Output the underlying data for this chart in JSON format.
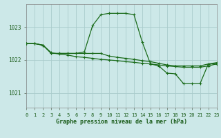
{
  "title": "Graphe pression niveau de la mer (hPa)",
  "bg_color": "#cce8e8",
  "grid_color_major": "#aacccc",
  "grid_color_minor": "#bbdddd",
  "line_color": "#1a6b1a",
  "xlim": [
    0,
    23
  ],
  "ylim": [
    1020.55,
    1023.7
  ],
  "yticks": [
    1021,
    1022,
    1023
  ],
  "xticks": [
    0,
    1,
    2,
    3,
    4,
    5,
    6,
    7,
    8,
    9,
    10,
    11,
    12,
    13,
    14,
    15,
    16,
    17,
    18,
    19,
    20,
    21,
    22,
    23
  ],
  "series1_x": [
    0,
    1,
    2,
    3,
    4,
    5,
    6,
    7,
    8,
    9,
    10,
    11,
    12,
    13,
    14,
    15,
    16,
    17,
    18,
    19,
    20,
    21,
    22,
    23
  ],
  "series1_y": [
    1022.5,
    1022.5,
    1022.45,
    1022.2,
    1022.2,
    1022.2,
    1022.2,
    1022.25,
    1023.05,
    1023.38,
    1023.42,
    1023.42,
    1023.42,
    1023.38,
    1022.55,
    1021.88,
    1021.82,
    1021.6,
    1021.58,
    1021.28,
    1021.28,
    1021.28,
    1021.88,
    1021.88
  ],
  "series2_x": [
    0,
    1,
    2,
    3,
    4,
    5,
    6,
    7,
    8,
    9,
    10,
    11,
    12,
    13,
    14,
    15,
    16,
    17,
    18,
    19,
    20,
    21,
    22,
    23
  ],
  "series2_y": [
    1022.5,
    1022.5,
    1022.45,
    1022.2,
    1022.2,
    1022.2,
    1022.2,
    1022.2,
    1022.2,
    1022.2,
    1022.12,
    1022.08,
    1022.05,
    1022.02,
    1021.98,
    1021.95,
    1021.9,
    1021.85,
    1021.82,
    1021.82,
    1021.82,
    1021.82,
    1021.88,
    1021.92
  ],
  "series3_x": [
    0,
    1,
    2,
    3,
    4,
    5,
    6,
    7,
    8,
    9,
    10,
    11,
    12,
    13,
    14,
    15,
    16,
    17,
    18,
    19,
    20,
    21,
    22,
    23
  ],
  "series3_y": [
    1022.5,
    1022.5,
    1022.45,
    1022.22,
    1022.18,
    1022.15,
    1022.1,
    1022.08,
    1022.05,
    1022.02,
    1022.0,
    1021.98,
    1021.95,
    1021.93,
    1021.9,
    1021.88,
    1021.85,
    1021.82,
    1021.8,
    1021.78,
    1021.78,
    1021.78,
    1021.82,
    1021.88
  ]
}
